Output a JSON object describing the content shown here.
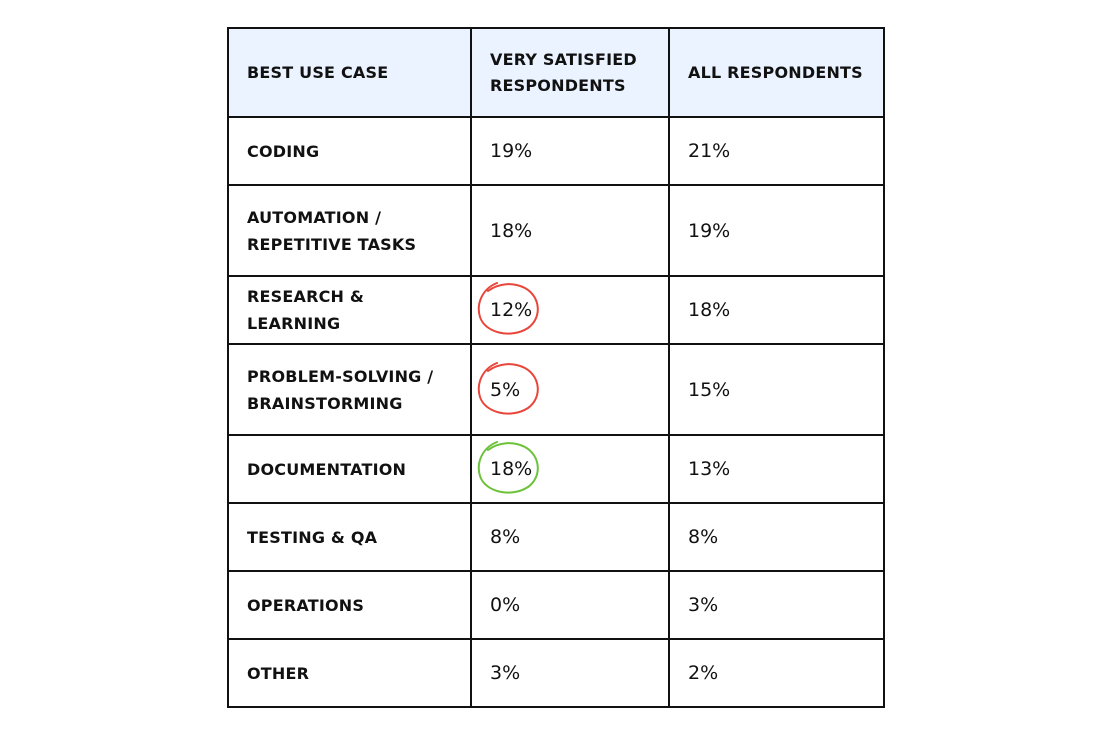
{
  "chart_data": {
    "type": "table",
    "columns": [
      "BEST USE CASE",
      "VERY SATISFIED RESPONDENTS",
      "ALL RESPONDENTS"
    ],
    "rows": [
      {
        "label": "CODING",
        "very_satisfied": "19%",
        "all": "21%",
        "highlight": null
      },
      {
        "label": "AUTOMATION / REPETITIVE TASKS",
        "very_satisfied": "18%",
        "all": "19%",
        "highlight": null
      },
      {
        "label": "RESEARCH & LEARNING",
        "very_satisfied": "12%",
        "all": "18%",
        "highlight": "red"
      },
      {
        "label": "PROBLEM-SOLVING / BRAINSTORMING",
        "very_satisfied": "5%",
        "all": "15%",
        "highlight": "red"
      },
      {
        "label": "DOCUMENTATION",
        "very_satisfied": "18%",
        "all": "13%",
        "highlight": "green"
      },
      {
        "label": "TESTING & QA",
        "very_satisfied": "8%",
        "all": "8%",
        "highlight": null
      },
      {
        "label": "OPERATIONS",
        "very_satisfied": "0%",
        "all": "3%",
        "highlight": null
      },
      {
        "label": "OTHER",
        "very_satisfied": "3%",
        "all": "2%",
        "highlight": null
      }
    ]
  },
  "colors": {
    "header_background": "#eaf3ff",
    "border": "#111111",
    "highlight_red": "#e8463b",
    "highlight_green": "#6cc23a"
  }
}
